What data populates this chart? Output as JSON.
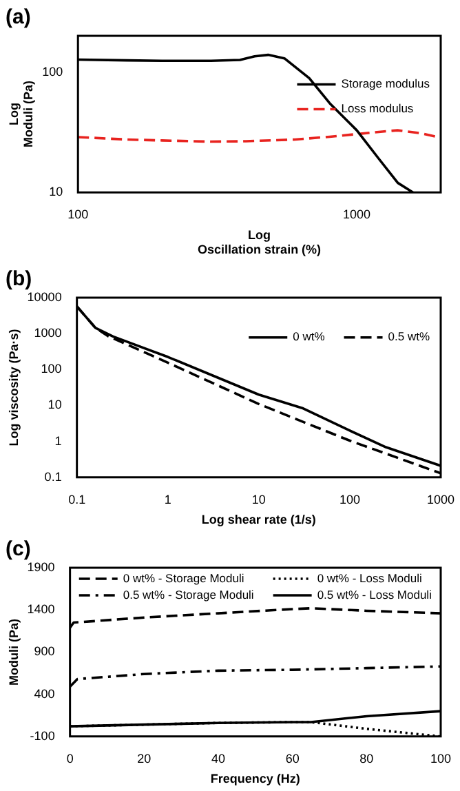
{
  "chart_data": [
    {
      "type": "line",
      "title": "(a)",
      "xlabel": "Log\nOscillation strain (%)",
      "ylabel": "Log\nModuli (Pa)",
      "log": "xy",
      "xlim": [
        100,
        2000
      ],
      "ylim": [
        10,
        200
      ],
      "xticks": [
        100,
        1000
      ],
      "yticks": [
        10,
        100
      ],
      "grid": false,
      "legend": "top right",
      "marker": "none",
      "series": [
        {
          "name": "Storage modulus",
          "color": "#000000",
          "line_style": "solid",
          "x": [
            100,
            150,
            200,
            300,
            381,
            430,
            481,
            550,
            675,
            800,
            1000,
            1200,
            1403,
            1590
          ],
          "values": [
            127,
            125,
            124,
            124,
            126,
            135,
            139,
            130,
            89,
            55,
            32.8,
            19,
            12,
            10
          ]
        },
        {
          "name": "Loss modulus",
          "color": "#e8231f",
          "line_style": "dashed",
          "x": [
            100,
            150,
            200,
            300,
            400,
            600,
            800,
            1000,
            1200,
            1400,
            1700,
            2000
          ],
          "values": [
            28.8,
            27.5,
            27,
            26.4,
            26.6,
            27.5,
            29,
            30.5,
            31.8,
            32.8,
            31,
            28.4
          ]
        }
      ]
    },
    {
      "type": "line",
      "title": "(b)",
      "xlabel": "Log shear rate (1/s)",
      "ylabel": "Log viscosity (Pa·s)",
      "log": "xy",
      "xlim": [
        0.1,
        1000
      ],
      "ylim": [
        0.1,
        10000
      ],
      "xticks": [
        0.1,
        1,
        10,
        100,
        1000
      ],
      "yticks": [
        0.1,
        1,
        10,
        100,
        1000,
        10000
      ],
      "grid": false,
      "legend": "top right",
      "marker": "none",
      "series": [
        {
          "name": "0 wt%",
          "color": "#000000",
          "line_style": "solid",
          "x": [
            0.1,
            0.16,
            0.25,
            1,
            10,
            30,
            100,
            250,
            1000
          ],
          "values": [
            5700,
            1440,
            830,
            224,
            20,
            8.5,
            2,
            0.69,
            0.21
          ]
        },
        {
          "name": "0.5 wt%",
          "color": "#000000",
          "line_style": "dashed",
          "x": [
            0.1,
            0.16,
            0.22,
            1,
            10,
            100,
            1000
          ],
          "values": [
            5700,
            1440,
            850,
            155,
            11,
            1.05,
            0.13
          ]
        }
      ]
    },
    {
      "type": "line",
      "title": "(c)",
      "xlabel": "Frequency (Hz)",
      "ylabel": "Moduli (Pa)",
      "xlim": [
        0,
        100
      ],
      "ylim": [
        -100,
        1900
      ],
      "xticks": [
        0,
        20,
        40,
        60,
        80,
        100
      ],
      "yticks": [
        -100,
        400,
        900,
        1400,
        1900
      ],
      "grid": false,
      "legend": "top",
      "marker": "none",
      "series": [
        {
          "name": "0 wt% - Storage Moduli",
          "color": "#000000",
          "line_style": "dashed",
          "x": [
            0,
            1,
            20,
            40,
            60,
            65,
            80,
            100
          ],
          "values": [
            1190,
            1250,
            1310,
            1360,
            1410,
            1420,
            1390,
            1360
          ]
        },
        {
          "name": "0 wt% - Loss Moduli",
          "color": "#000000",
          "line_style": "dotted",
          "x": [
            0,
            20,
            40,
            60,
            65,
            80,
            100
          ],
          "values": [
            20,
            40,
            60,
            70,
            70,
            -10,
            -100
          ]
        },
        {
          "name": "0.5 wt% - Storage Moduli",
          "color": "#000000",
          "line_style": "dashdot",
          "x": [
            0,
            2,
            20,
            40,
            60,
            80,
            100
          ],
          "values": [
            490,
            580,
            640,
            680,
            690,
            710,
            730
          ]
        },
        {
          "name": "0.5 wt% - Loss Moduli",
          "color": "#000000",
          "line_style": "solid",
          "x": [
            0,
            20,
            40,
            60,
            65,
            80,
            100
          ],
          "values": [
            20,
            40,
            60,
            70,
            70,
            140,
            200
          ]
        }
      ]
    }
  ]
}
